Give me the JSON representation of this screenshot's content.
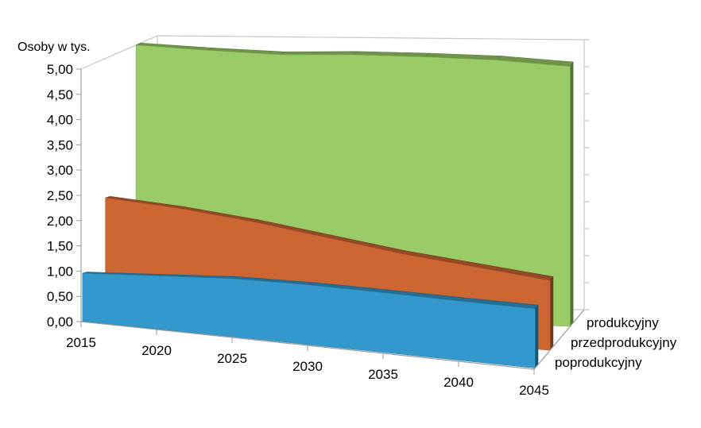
{
  "chart_data": {
    "type": "area",
    "ylabel": "Osoby w tys.",
    "y_tick_labels": [
      "0,00",
      "0,50",
      "1,00",
      "1,50",
      "2,00",
      "2,50",
      "3,00",
      "3,50",
      "4,00",
      "4,50",
      "5,00"
    ],
    "ylim": [
      0,
      5
    ],
    "x": [
      "2015",
      "2020",
      "2025",
      "2030",
      "2035",
      "2040",
      "2045"
    ],
    "series": [
      {
        "name": "poprodukcyjny",
        "color": "#3399CC",
        "values": [
          0.95,
          1.05,
          1.15,
          1.18,
          1.18,
          1.17,
          1.17
        ]
      },
      {
        "name": "przedprodukcyjny",
        "color": "#CC6633",
        "values": [
          2.3,
          2.2,
          2.05,
          1.85,
          1.65,
          1.5,
          1.35
        ]
      },
      {
        "name": "produkcyjny",
        "color": "#99CC66",
        "values": [
          5.0,
          4.95,
          4.92,
          4.97,
          4.98,
          4.97,
          4.9
        ]
      }
    ],
    "grid": false,
    "style": "3d"
  }
}
